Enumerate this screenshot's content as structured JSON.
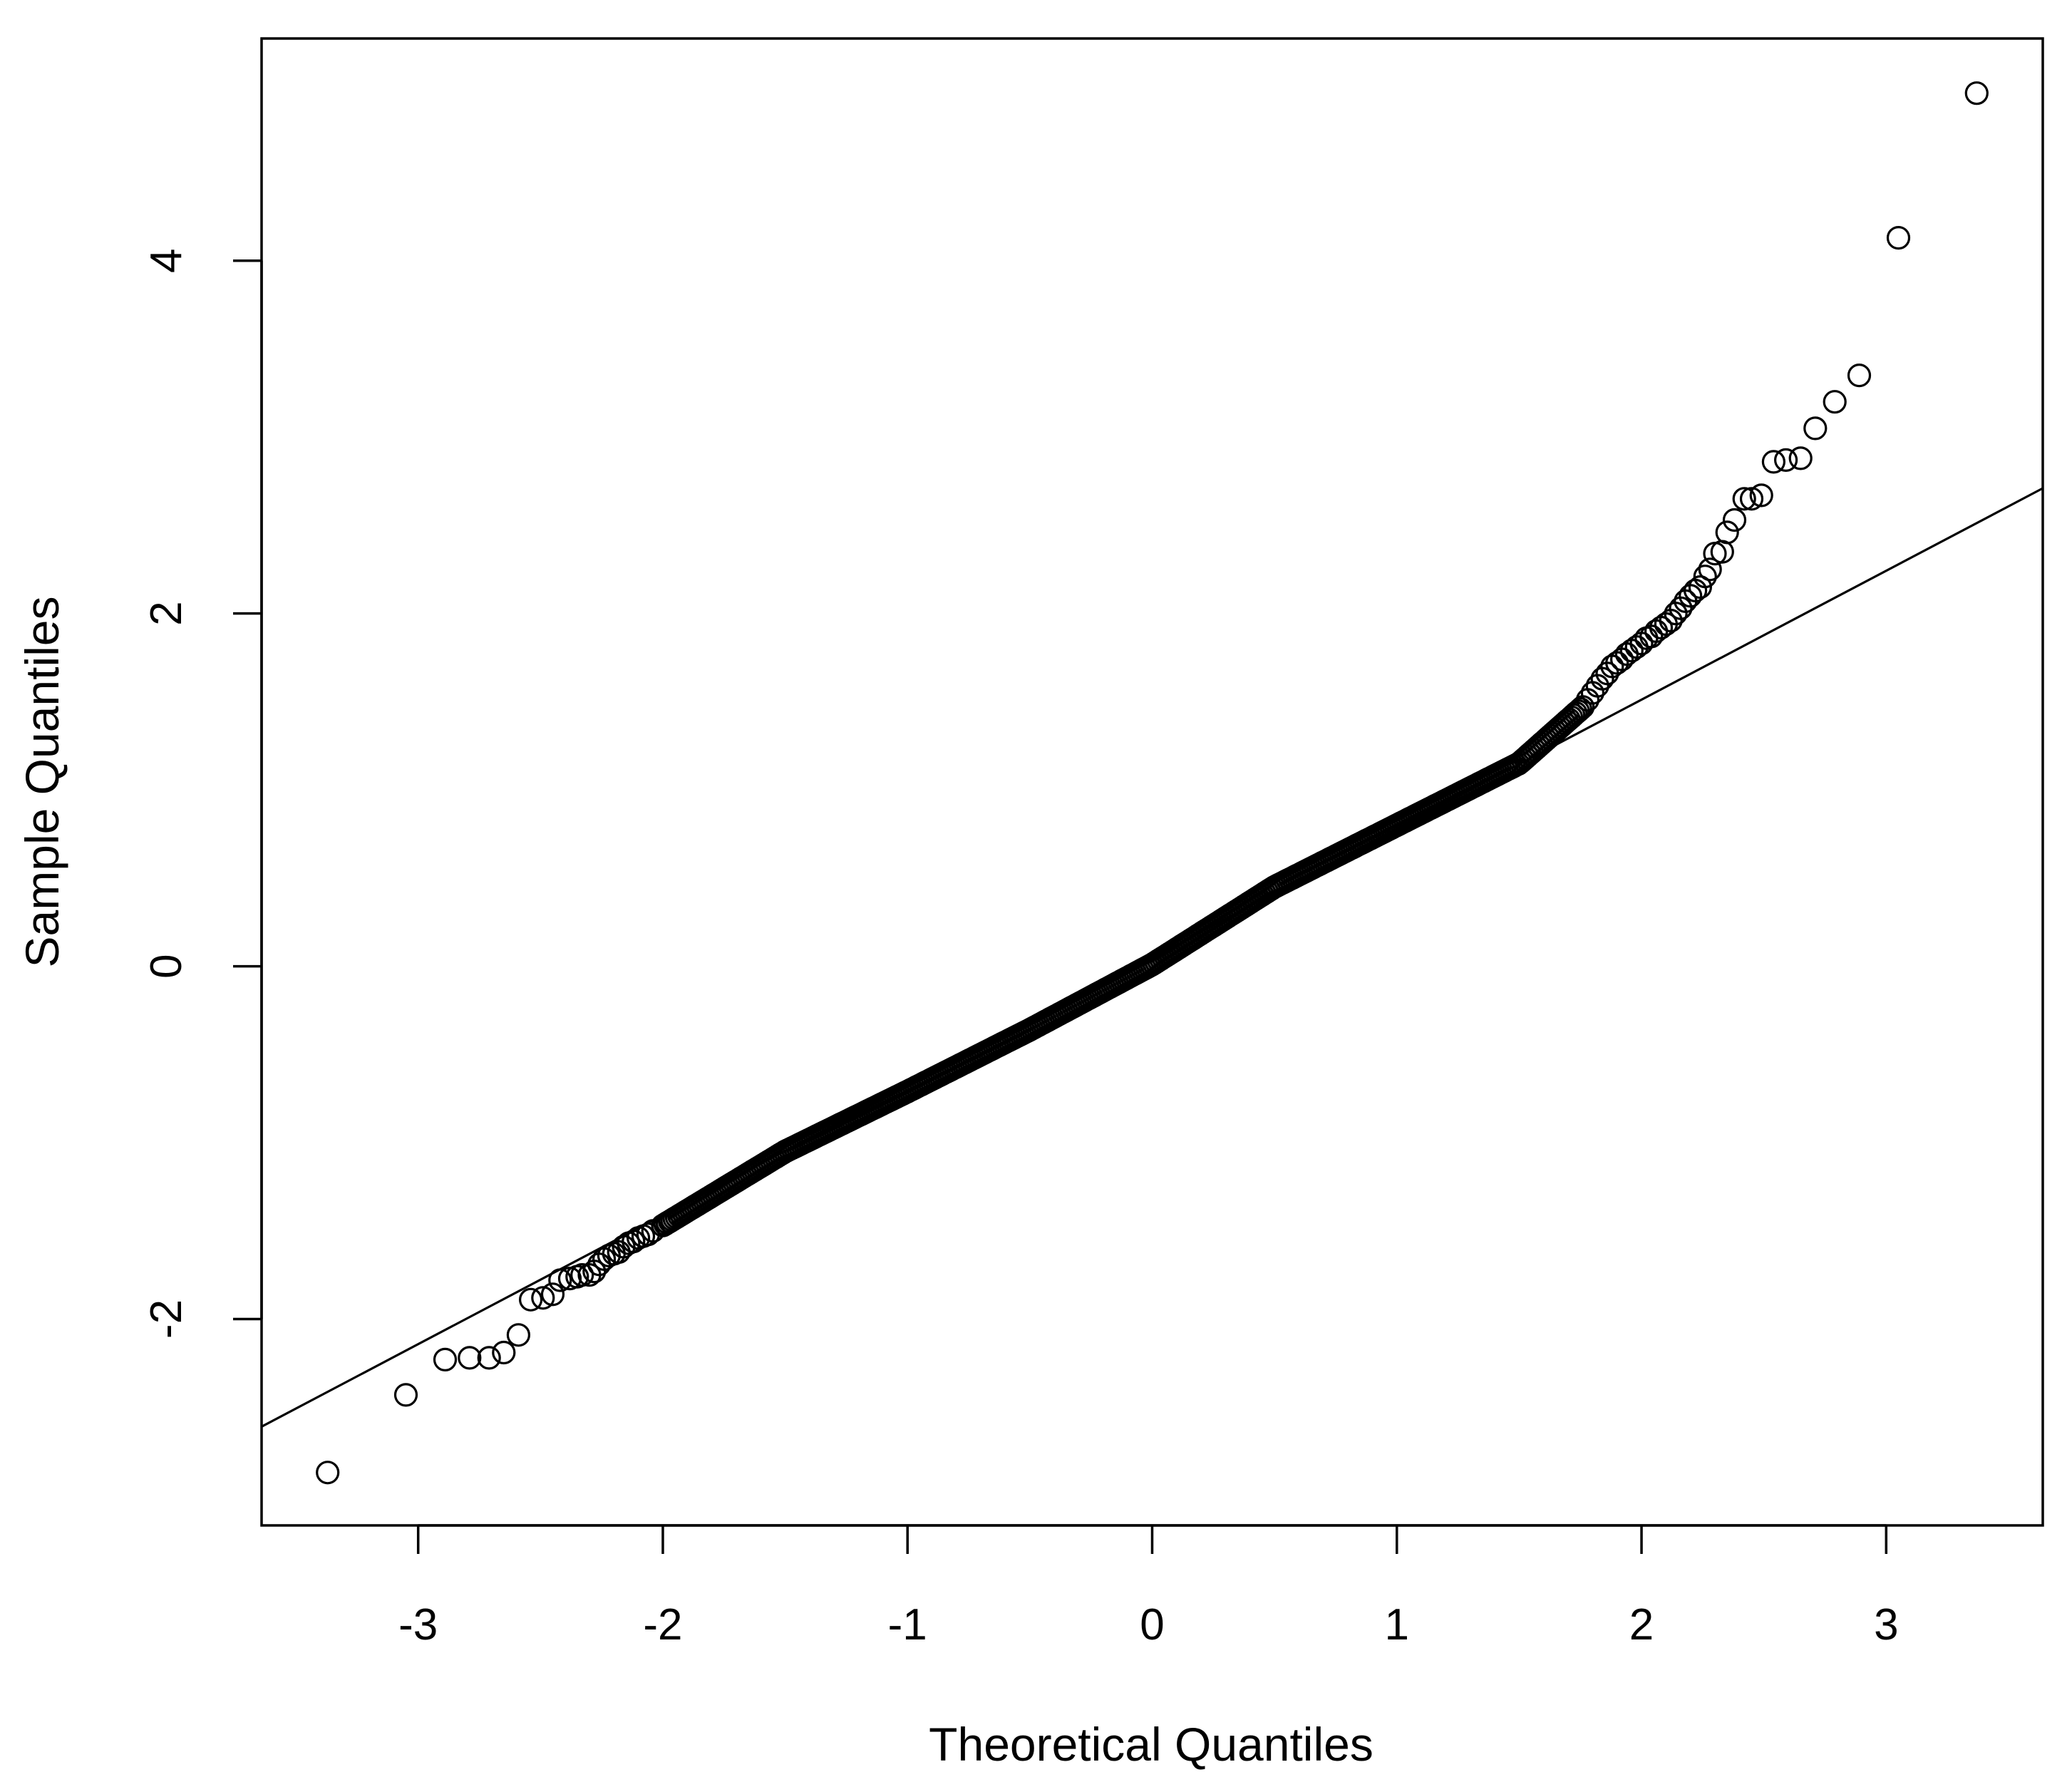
{
  "chart_data": {
    "type": "scatter",
    "title": "",
    "xlabel": "Theoretical Quantiles",
    "ylabel": "Sample Quantiles",
    "xlim": [
      -3.64,
      3.64
    ],
    "ylim": [
      -3.17,
      5.26
    ],
    "x_ticks": [
      -3,
      -2,
      -1,
      0,
      1,
      2,
      3
    ],
    "x_tick_labels": [
      "-3",
      "-2",
      "-1",
      "0",
      "1",
      "2",
      "3"
    ],
    "y_ticks": [
      -2,
      0,
      2,
      4
    ],
    "y_tick_labels": [
      "-2",
      "0",
      "2",
      "4"
    ],
    "grid": false,
    "legend": "none",
    "marker": "open-circle",
    "reference_line": {
      "label": "",
      "x": [
        -3.64,
        3.64
      ],
      "y": [
        -2.61,
        2.71
      ]
    },
    "tail_points": {
      "low": [
        [
          -3.37,
          -2.87
        ],
        [
          -3.05,
          -2.43
        ],
        [
          -2.89,
          -2.23
        ],
        [
          -2.79,
          -2.22
        ],
        [
          -2.71,
          -2.22
        ],
        [
          -2.65,
          -2.19
        ],
        [
          -2.59,
          -2.09
        ],
        [
          -2.54,
          -1.89
        ],
        [
          -2.49,
          -1.88
        ],
        [
          -2.45,
          -1.86
        ],
        [
          -2.42,
          -1.78
        ],
        [
          -2.38,
          -1.77
        ],
        [
          -2.35,
          -1.76
        ],
        [
          -2.33,
          -1.75
        ],
        [
          -2.3,
          -1.75
        ],
        [
          -2.28,
          -1.73
        ],
        [
          -2.26,
          -1.69
        ],
        [
          -2.24,
          -1.66
        ],
        [
          -2.22,
          -1.64
        ],
        [
          -2.2,
          -1.63
        ],
        [
          -2.18,
          -1.62
        ],
        [
          -2.16,
          -1.59
        ],
        [
          -2.14,
          -1.57
        ],
        [
          -2.12,
          -1.56
        ],
        [
          -2.1,
          -1.54
        ],
        [
          -2.08,
          -1.53
        ],
        [
          -2.06,
          -1.52
        ],
        [
          -2.04,
          -1.5
        ]
      ],
      "high": [
        [
          3.37,
          4.95
        ],
        [
          3.05,
          4.13
        ],
        [
          2.89,
          3.35
        ],
        [
          2.79,
          3.2
        ],
        [
          2.71,
          3.05
        ],
        [
          2.65,
          2.88
        ],
        [
          2.59,
          2.87
        ],
        [
          2.54,
          2.86
        ],
        [
          2.49,
          2.67
        ],
        [
          2.45,
          2.65
        ],
        [
          2.42,
          2.65
        ],
        [
          2.38,
          2.53
        ],
        [
          2.35,
          2.46
        ],
        [
          2.33,
          2.35
        ],
        [
          2.3,
          2.34
        ],
        [
          2.28,
          2.25
        ],
        [
          2.26,
          2.21
        ],
        [
          2.24,
          2.15
        ],
        [
          2.22,
          2.13
        ],
        [
          2.2,
          2.1
        ],
        [
          2.18,
          2.07
        ],
        [
          2.16,
          2.03
        ],
        [
          2.14,
          2.0
        ],
        [
          2.12,
          1.96
        ],
        [
          2.1,
          1.94
        ],
        [
          2.08,
          1.92
        ],
        [
          2.06,
          1.9
        ],
        [
          2.04,
          1.87
        ],
        [
          2.02,
          1.86
        ],
        [
          2.0,
          1.83
        ],
        [
          1.98,
          1.81
        ],
        [
          1.96,
          1.79
        ],
        [
          1.94,
          1.77
        ],
        [
          1.92,
          1.74
        ],
        [
          1.9,
          1.72
        ],
        [
          1.88,
          1.7
        ],
        [
          1.86,
          1.66
        ],
        [
          1.84,
          1.63
        ],
        [
          1.82,
          1.59
        ],
        [
          1.8,
          1.55
        ],
        [
          1.78,
          1.51
        ]
      ]
    },
    "central_curve": {
      "x": [
        -2.0,
        -1.5,
        -1.0,
        -0.5,
        0.0,
        0.5,
        1.0,
        1.5,
        1.76
      ],
      "y": [
        -1.47,
        -1.05,
        -0.71,
        -0.36,
        0.01,
        0.45,
        0.8,
        1.15,
        1.47
      ]
    },
    "central_point_count": 400,
    "colors": {
      "ink": "#000000",
      "background": "#ffffff"
    }
  }
}
